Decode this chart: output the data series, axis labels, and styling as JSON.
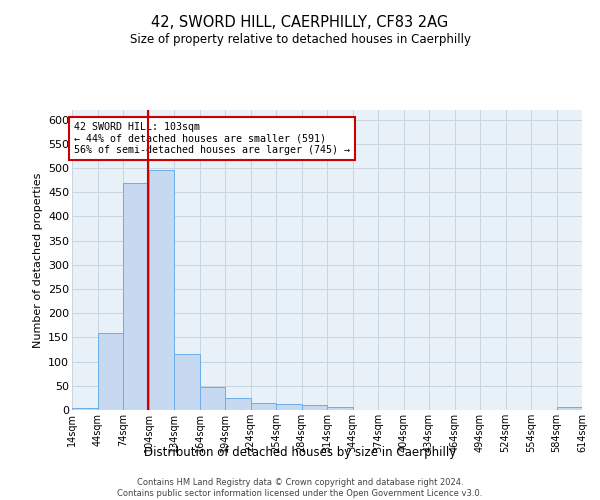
{
  "title": "42, SWORD HILL, CAERPHILLY, CF83 2AG",
  "subtitle": "Size of property relative to detached houses in Caerphilly",
  "xlabel": "Distribution of detached houses by size in Caerphilly",
  "ylabel": "Number of detached properties",
  "footer_line1": "Contains HM Land Registry data © Crown copyright and database right 2024.",
  "footer_line2": "Contains public sector information licensed under the Open Government Licence v3.0.",
  "bins": [
    14,
    44,
    74,
    104,
    134,
    164,
    194,
    224,
    254,
    284,
    314,
    344,
    374,
    404,
    434,
    464,
    494,
    524,
    554,
    584,
    614
  ],
  "bar_heights": [
    5,
    160,
    470,
    495,
    115,
    48,
    25,
    14,
    12,
    10,
    7,
    0,
    0,
    0,
    0,
    0,
    0,
    0,
    0,
    7
  ],
  "bar_color": "#c6d9f0",
  "bar_edgecolor": "#6aaee8",
  "property_size": 103,
  "red_line_color": "#cc0000",
  "annotation_text": "42 SWORD HILL: 103sqm\n← 44% of detached houses are smaller (591)\n56% of semi-detached houses are larger (745) →",
  "annotation_box_color": "#ffffff",
  "annotation_box_edgecolor": "#cc0000",
  "ylim": [
    0,
    620
  ],
  "yticks": [
    0,
    50,
    100,
    150,
    200,
    250,
    300,
    350,
    400,
    450,
    500,
    550,
    600
  ],
  "background_color": "#ffffff",
  "grid_color": "#c8d4e0",
  "ax_facecolor": "#e8f0f8"
}
